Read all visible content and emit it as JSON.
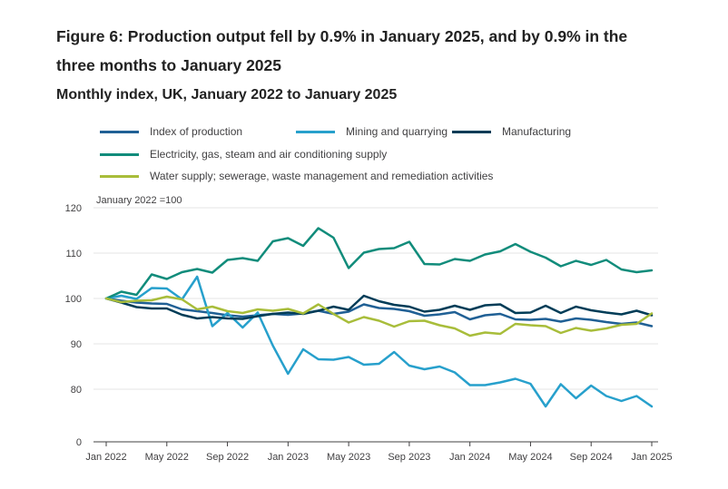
{
  "title": "Figure 6: Production output fell by 0.9% in January 2025, and by 0.9% in the three months to January 2025",
  "subtitle": "Monthly index, UK, January 2022 to January 2025",
  "colors": {
    "index_of_production": "#206095",
    "mining_and_quarrying": "#27a0cc",
    "manufacturing": "#003c57",
    "electricity": "#118c7b",
    "water_supply": "#a8bd3a",
    "grid": "#e5e5e5",
    "axis": "#414042"
  },
  "chart_data": {
    "type": "line",
    "title": "Figure 6: Production output fell by 0.9% in January 2025, and by 0.9% in the three months to January 2025",
    "subtitle": "Monthly index, UK, January 2022 to January 2025",
    "ylabel": "January 2022 =100",
    "xlabel": "",
    "ylim": [
      0,
      120
    ],
    "y_ticks": [
      0,
      80,
      90,
      100,
      110,
      120
    ],
    "y_axis_break": "between 0 and 80",
    "grid": true,
    "legend_position": "top",
    "x_ticks": [
      "Jan 2022",
      "May 2022",
      "Sep 2022",
      "Jan 2023",
      "May 2023",
      "Sep 2023",
      "Jan 2024",
      "May 2024",
      "Sep 2024",
      "Jan 2025"
    ],
    "x": [
      "Jan 2022",
      "Feb 2022",
      "Mar 2022",
      "Apr 2022",
      "May 2022",
      "Jun 2022",
      "Jul 2022",
      "Aug 2022",
      "Sep 2022",
      "Oct 2022",
      "Nov 2022",
      "Dec 2022",
      "Jan 2023",
      "Feb 2023",
      "Mar 2023",
      "Apr 2023",
      "May 2023",
      "Jun 2023",
      "Jul 2023",
      "Aug 2023",
      "Sep 2023",
      "Oct 2023",
      "Nov 2023",
      "Dec 2023",
      "Jan 2024",
      "Feb 2024",
      "Mar 2024",
      "Apr 2024",
      "May 2024",
      "Jun 2024",
      "Jul 2024",
      "Aug 2024",
      "Sep 2024",
      "Oct 2024",
      "Nov 2024",
      "Dec 2024",
      "Jan 2025"
    ],
    "series": [
      {
        "name": "Index of production",
        "color_key": "index_of_production",
        "values": [
          100,
          99.5,
          99.1,
          98.9,
          98.8,
          97.6,
          97.2,
          96.8,
          96.3,
          96,
          96.3,
          96.6,
          96.4,
          96.7,
          97.3,
          96.6,
          97.1,
          98.7,
          97.9,
          97.7,
          97.2,
          96.2,
          96.5,
          97,
          95.4,
          96.3,
          96.6,
          95.4,
          95.3,
          95.5,
          94.9,
          95.6,
          95.3,
          94.8,
          94.4,
          94.7,
          93.9
        ]
      },
      {
        "name": "Mining and quarrying",
        "color_key": "mining_and_quarrying",
        "values": [
          100,
          100.6,
          99.9,
          102.3,
          102.2,
          99.8,
          104.8,
          93.9,
          96.8,
          93.6,
          96.9,
          89.6,
          83.4,
          88.8,
          86.6,
          86.5,
          87.1,
          85.4,
          85.6,
          88.2,
          85.2,
          84.4,
          85,
          83.7,
          80.9,
          80.9,
          81.5,
          82.3,
          81.2,
          76.2,
          81.1,
          78,
          80.8,
          78.5,
          77.4,
          78.5,
          76.2
        ]
      },
      {
        "name": "Manufacturing",
        "color_key": "manufacturing",
        "values": [
          100,
          99.1,
          98.1,
          97.8,
          97.8,
          96.4,
          95.6,
          95.9,
          95.6,
          95.5,
          96.1,
          96.6,
          96.9,
          96.6,
          97.3,
          98.2,
          97.5,
          100.6,
          99.4,
          98.6,
          98.2,
          97.1,
          97.5,
          98.4,
          97.5,
          98.5,
          98.7,
          96.8,
          96.9,
          98.4,
          96.8,
          98.2,
          97.4,
          96.9,
          96.5,
          97.3,
          96.3
        ]
      },
      {
        "name": "Electricity, gas, steam and air conditioning supply",
        "color_key": "electricity",
        "values": [
          100,
          101.5,
          100.8,
          105.3,
          104.3,
          105.8,
          106.5,
          105.7,
          108.5,
          108.9,
          108.3,
          112.6,
          113.3,
          111.6,
          115.5,
          113.4,
          106.7,
          110.1,
          110.9,
          111.1,
          112.5,
          107.6,
          107.5,
          108.7,
          108.3,
          109.7,
          110.4,
          112,
          110.3,
          109,
          107.1,
          108.3,
          107.4,
          108.5,
          106.4,
          105.8,
          106.2
        ]
      },
      {
        "name": "Water supply; sewerage, waste management and remediation activities",
        "color_key": "water_supply",
        "values": [
          100,
          99.2,
          99.5,
          99.6,
          100.4,
          99.8,
          97.6,
          98.2,
          97.2,
          96.8,
          97.6,
          97.3,
          97.7,
          96.7,
          98.7,
          96.6,
          94.7,
          95.9,
          95.1,
          93.8,
          95,
          95.1,
          94.1,
          93.4,
          91.8,
          92.5,
          92.2,
          94.4,
          94.1,
          93.9,
          92.4,
          93.5,
          92.9,
          93.4,
          94.2,
          94.4,
          96.7
        ]
      }
    ]
  }
}
